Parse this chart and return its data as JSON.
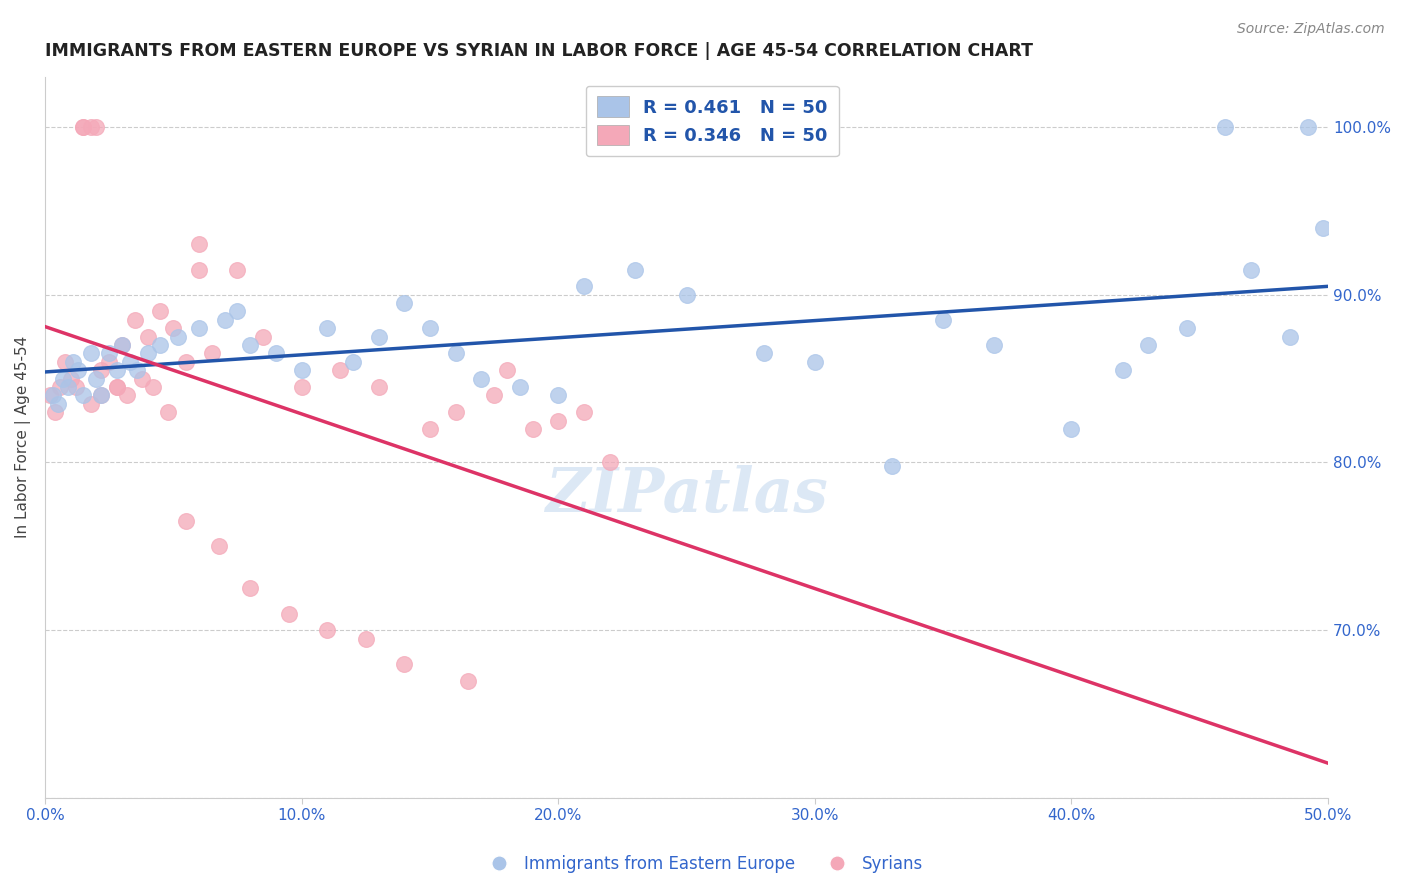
{
  "title": "IMMIGRANTS FROM EASTERN EUROPE VS SYRIAN IN LABOR FORCE | AGE 45-54 CORRELATION CHART",
  "source": "Source: ZipAtlas.com",
  "ylabel_label": "In Labor Force | Age 45-54",
  "x_range": [
    0.0,
    50.0
  ],
  "y_range": [
    60.0,
    103.0
  ],
  "legend_blue_r": "0.461",
  "legend_blue_n": "50",
  "legend_pink_r": "0.346",
  "legend_pink_n": "50",
  "blue_color": "#aac4e8",
  "pink_color": "#f4a8b8",
  "blue_line_color": "#2255aa",
  "pink_line_color": "#dd3366",
  "blue_scatter_x": [
    0.3,
    0.5,
    0.7,
    0.9,
    1.1,
    1.3,
    1.5,
    1.8,
    2.0,
    2.2,
    2.5,
    2.8,
    3.0,
    3.3,
    3.6,
    4.0,
    4.5,
    5.2,
    6.0,
    7.0,
    7.5,
    8.0,
    9.0,
    10.0,
    11.0,
    12.0,
    13.0,
    14.0,
    15.0,
    16.0,
    17.0,
    18.5,
    20.0,
    21.0,
    23.0,
    25.0,
    28.0,
    30.0,
    33.0,
    35.0,
    37.0,
    40.0,
    42.0,
    43.0,
    44.5,
    46.0,
    47.0,
    48.5,
    49.2,
    49.8
  ],
  "blue_scatter_y": [
    84.0,
    83.5,
    85.0,
    84.5,
    86.0,
    85.5,
    84.0,
    86.5,
    85.0,
    84.0,
    86.5,
    85.5,
    87.0,
    86.0,
    85.5,
    86.5,
    87.0,
    87.5,
    88.0,
    88.5,
    89.0,
    87.0,
    86.5,
    85.5,
    88.0,
    86.0,
    87.5,
    89.5,
    88.0,
    86.5,
    85.0,
    84.5,
    84.0,
    90.5,
    91.5,
    90.0,
    86.5,
    86.0,
    79.8,
    88.5,
    87.0,
    82.0,
    85.5,
    87.0,
    88.0,
    100.0,
    91.5,
    87.5,
    100.0,
    94.0
  ],
  "pink_scatter_x": [
    0.2,
    0.4,
    0.6,
    0.8,
    1.0,
    1.2,
    1.5,
    1.5,
    1.8,
    2.0,
    2.2,
    2.5,
    2.8,
    3.0,
    3.5,
    4.0,
    4.5,
    5.0,
    6.0,
    6.5,
    7.5,
    8.5,
    10.0,
    11.5,
    13.0,
    15.0,
    16.0,
    17.5,
    18.0,
    19.0,
    20.0,
    21.0,
    22.0,
    5.5,
    6.0,
    1.8,
    2.2,
    2.8,
    3.2,
    3.8,
    4.2,
    4.8,
    5.5,
    6.8,
    8.0,
    9.5,
    11.0,
    12.5,
    14.0,
    16.5
  ],
  "pink_scatter_y": [
    84.0,
    83.0,
    84.5,
    86.0,
    85.0,
    84.5,
    100.0,
    100.0,
    100.0,
    100.0,
    85.5,
    86.0,
    84.5,
    87.0,
    88.5,
    87.5,
    89.0,
    88.0,
    93.0,
    86.5,
    91.5,
    87.5,
    84.5,
    85.5,
    84.5,
    82.0,
    83.0,
    84.0,
    85.5,
    82.0,
    82.5,
    83.0,
    80.0,
    86.0,
    91.5,
    83.5,
    84.0,
    84.5,
    84.0,
    85.0,
    84.5,
    83.0,
    76.5,
    75.0,
    72.5,
    71.0,
    70.0,
    69.5,
    68.0,
    67.0
  ]
}
